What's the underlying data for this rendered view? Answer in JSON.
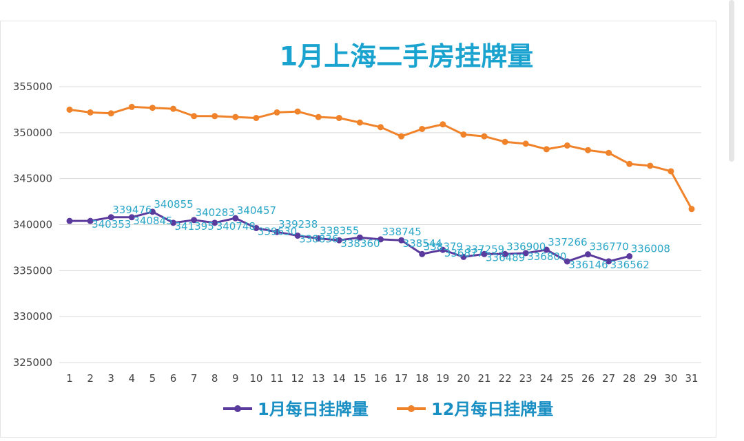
{
  "chart_data": {
    "type": "line",
    "title": "1月上海二手房挂牌量",
    "xlabel": "",
    "ylabel": "",
    "categories": [
      "1",
      "2",
      "3",
      "4",
      "5",
      "6",
      "7",
      "8",
      "9",
      "10",
      "11",
      "12",
      "13",
      "14",
      "15",
      "16",
      "17",
      "18",
      "19",
      "20",
      "21",
      "22",
      "23",
      "24",
      "25",
      "26",
      "27",
      "28",
      "29",
      "30",
      "31"
    ],
    "ylim": [
      325000,
      355000
    ],
    "yticks": [
      "325000",
      "330000",
      "335000",
      "340000",
      "345000",
      "350000",
      "355000"
    ],
    "grid": true,
    "legend_position": "bottom",
    "series": [
      {
        "name": "1月每日挂牌量",
        "color": "#5b3a9e",
        "values": [
          340400,
          340400,
          340800,
          340800,
          341395,
          340200,
          340500,
          340200,
          340700,
          339630,
          339200,
          338800,
          338500,
          338300,
          338600,
          338400,
          338300,
          336800,
          337259,
          336489,
          336800,
          336800,
          336900,
          337266,
          336000,
          336770,
          336008,
          336562,
          null,
          null,
          null
        ]
      },
      {
        "name": "12月每日挂牌量",
        "color": "#f0822a",
        "values": [
          352500,
          352200,
          352100,
          352800,
          352700,
          352600,
          351800,
          351800,
          351700,
          351600,
          352200,
          352300,
          351700,
          351600,
          351100,
          350600,
          349600,
          350400,
          350900,
          349800,
          349600,
          349000,
          348800,
          348200,
          348600,
          348100,
          347800,
          346600,
          346400,
          345800,
          341700
        ]
      }
    ],
    "data_labels": [
      "340353",
      "339476",
      "340845",
      "340855",
      "341395",
      "340283",
      "340748",
      "340457",
      "339630",
      "339238",
      "338836",
      "338355",
      "338360",
      "338745",
      "338544",
      "338379",
      "336877",
      "337259",
      "336489",
      "336900",
      "336800",
      "337266",
      "336146",
      "336770",
      "336562",
      "336008"
    ]
  }
}
